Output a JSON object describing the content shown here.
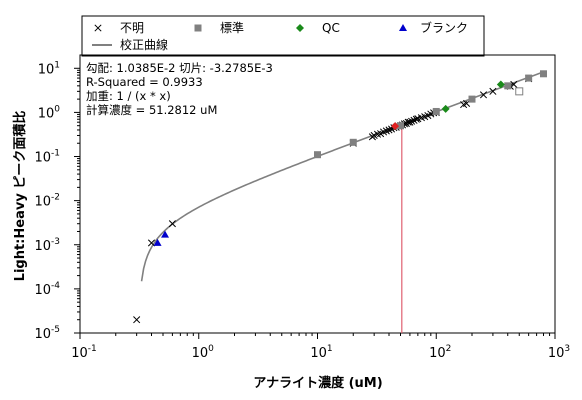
{
  "chart_data": {
    "type": "scatter",
    "xlabel": "アナライト濃度 (uM)",
    "ylabel": "Light:Heavy ピーク面積比",
    "x_scale": "log",
    "y_scale": "log",
    "xlim": [
      0.1,
      1000
    ],
    "ylim": [
      1e-05,
      20
    ],
    "x_ticks": [
      {
        "v": 0.1,
        "base": "10",
        "exp": "-1"
      },
      {
        "v": 1,
        "base": "10",
        "exp": "0"
      },
      {
        "v": 10,
        "base": "10",
        "exp": "1"
      },
      {
        "v": 100,
        "base": "10",
        "exp": "2"
      },
      {
        "v": 1000,
        "base": "10",
        "exp": "3"
      }
    ],
    "y_ticks": [
      {
        "v": 10,
        "base": "10",
        "exp": "1"
      },
      {
        "v": 1,
        "base": "10",
        "exp": "0"
      },
      {
        "v": 0.1,
        "base": "10",
        "exp": "-1"
      },
      {
        "v": 0.01,
        "base": "10",
        "exp": "-2"
      },
      {
        "v": 0.001,
        "base": "10",
        "exp": "-3"
      },
      {
        "v": 0.0001,
        "base": "10",
        "exp": "-4"
      },
      {
        "v": 1e-05,
        "base": "10",
        "exp": "-5"
      }
    ],
    "grid": false,
    "legend": {
      "placement": "top",
      "entries": [
        {
          "label": "不明",
          "marker": "x",
          "color": "#000000"
        },
        {
          "label": "標準",
          "marker": "square",
          "color": "#808080"
        },
        {
          "label": "QC",
          "marker": "diamond",
          "color": "#1a8a1a"
        },
        {
          "label": "ブランク",
          "marker": "triangle",
          "color": "#0000cc"
        },
        {
          "label": "校正曲線",
          "marker": "line",
          "color": "#808080"
        }
      ]
    },
    "annotations": [
      "勾配: 1.0385E-2 切片: -3.2785E-3",
      "R-Squared = 0.9933",
      "加重: 1 / (x * x)",
      "計算濃度 = 51.2812 uM"
    ],
    "fit": {
      "slope": 0.010385,
      "intercept": -0.0032785,
      "x_range": [
        0.33,
        800
      ],
      "color": "#808080"
    },
    "calculated_concentration": 51.2812,
    "calc_line_color": "#e06070",
    "series": [
      {
        "name": "不明",
        "marker": "x",
        "color": "#000000",
        "points": [
          [
            0.3,
            2e-05
          ],
          [
            0.4,
            0.0011
          ],
          [
            0.6,
            0.003
          ],
          [
            20,
            0.2
          ],
          [
            29,
            0.28
          ],
          [
            30,
            0.3
          ],
          [
            32,
            0.32
          ],
          [
            34,
            0.33
          ],
          [
            36,
            0.36
          ],
          [
            38,
            0.38
          ],
          [
            40,
            0.4
          ],
          [
            42,
            0.42
          ],
          [
            44,
            0.45
          ],
          [
            46,
            0.46
          ],
          [
            48,
            0.49
          ],
          [
            50,
            0.5
          ],
          [
            52,
            0.52
          ],
          [
            54,
            0.55
          ],
          [
            56,
            0.56
          ],
          [
            58,
            0.6
          ],
          [
            60,
            0.6
          ],
          [
            62,
            0.63
          ],
          [
            65,
            0.66
          ],
          [
            68,
            0.7
          ],
          [
            70,
            0.72
          ],
          [
            75,
            0.76
          ],
          [
            80,
            0.8
          ],
          [
            85,
            0.85
          ],
          [
            90,
            0.92
          ],
          [
            95,
            0.98
          ],
          [
            100,
            1.0
          ],
          [
            170,
            1.5
          ],
          [
            180,
            1.6
          ],
          [
            250,
            2.5
          ],
          [
            300,
            3.0
          ],
          [
            420,
            3.9
          ],
          [
            450,
            4.3
          ],
          [
            600,
            5.8
          ]
        ]
      },
      {
        "name": "標準",
        "marker": "square",
        "color": "#808080",
        "points": [
          [
            10,
            0.11
          ],
          [
            20,
            0.21
          ],
          [
            50,
            0.5
          ],
          [
            100,
            1.05
          ],
          [
            200,
            2.0
          ],
          [
            400,
            4.0
          ],
          [
            600,
            6.0
          ],
          [
            800,
            7.5
          ]
        ]
      },
      {
        "name": "QC",
        "marker": "diamond",
        "color": "#1a8a1a",
        "points": [
          [
            120,
            1.2
          ],
          [
            350,
            4.3
          ]
        ]
      },
      {
        "name": "ブランク",
        "marker": "triangle",
        "color": "#0000cc",
        "points": [
          [
            0.45,
            0.0011
          ],
          [
            0.52,
            0.0017
          ]
        ]
      },
      {
        "name": "",
        "marker": "diamond",
        "color": "#e02020",
        "points": [
          [
            45,
            0.49
          ]
        ]
      },
      {
        "name": "",
        "marker": "open-square",
        "color": "#808080",
        "points": [
          [
            500,
            3.0
          ]
        ]
      }
    ]
  }
}
